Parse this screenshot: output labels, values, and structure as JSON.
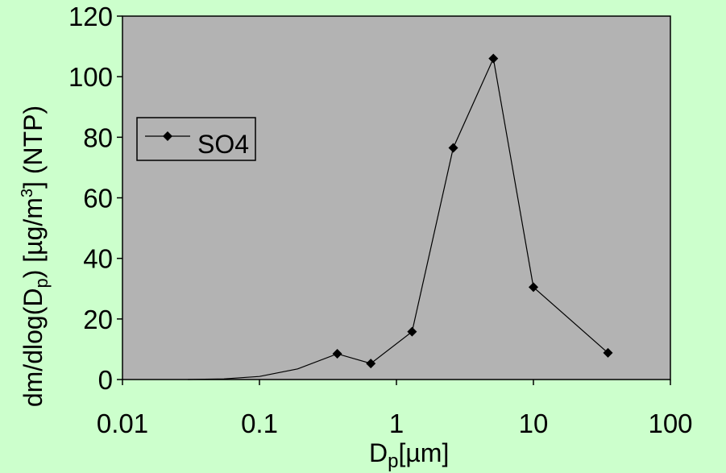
{
  "chart_data": {
    "type": "line",
    "x_scale": "log",
    "xlim": [
      0.01,
      100
    ],
    "ylim": [
      0,
      120
    ],
    "x_ticks": [
      "0.01",
      "0.1",
      "1",
      "10",
      "100"
    ],
    "y_ticks": [
      "0",
      "20",
      "40",
      "60",
      "80",
      "100",
      "120"
    ],
    "xlabel": {
      "main": "D",
      "sub": "p",
      "rest": "[µm]"
    },
    "ylabel": {
      "pre": "dm/dlog(D",
      "sub": "p",
      "mid": ") [µg/m",
      "sup": "3",
      "post": "] (NTP)"
    },
    "grid": false,
    "legend": {
      "position": "left",
      "entries": [
        "SO4"
      ]
    },
    "background_color": "#ccffcc",
    "plot_color": "#b3b3b3",
    "series": [
      {
        "name": "SO4",
        "color": "#000000",
        "marker": "diamond",
        "points": [
          {
            "x": 0.03,
            "y": 0,
            "marker": false
          },
          {
            "x": 0.055,
            "y": 0.2,
            "marker": false
          },
          {
            "x": 0.1,
            "y": 1,
            "marker": false
          },
          {
            "x": 0.19,
            "y": 3.5,
            "marker": false
          },
          {
            "x": 0.37,
            "y": 8.5,
            "marker": true
          },
          {
            "x": 0.65,
            "y": 5.3,
            "marker": true
          },
          {
            "x": 1.3,
            "y": 15.8,
            "marker": true
          },
          {
            "x": 2.6,
            "y": 76.5,
            "marker": true
          },
          {
            "x": 5.1,
            "y": 106,
            "marker": true
          },
          {
            "x": 10,
            "y": 30.5,
            "marker": true
          },
          {
            "x": 35,
            "y": 8.8,
            "marker": true
          }
        ]
      }
    ]
  }
}
